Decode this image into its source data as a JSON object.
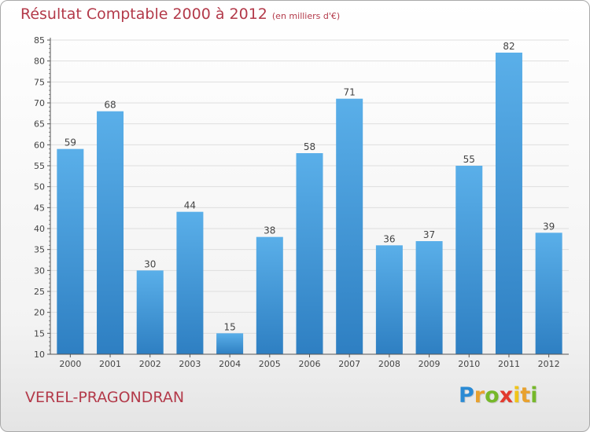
{
  "chart_data": {
    "type": "bar",
    "title": "Résultat Comptable 2000 à 2012",
    "subtitle": "(en milliers d'€)",
    "categories": [
      "2000",
      "2001",
      "2002",
      "2003",
      "2004",
      "2005",
      "2006",
      "2007",
      "2008",
      "2009",
      "2010",
      "2011",
      "2012"
    ],
    "values": [
      59,
      68,
      30,
      44,
      15,
      38,
      58,
      71,
      36,
      37,
      55,
      82,
      39
    ],
    "ylim": [
      10,
      85
    ],
    "yticks": [
      10,
      15,
      20,
      25,
      30,
      35,
      40,
      45,
      50,
      55,
      60,
      65,
      70,
      75,
      80,
      85
    ],
    "xlabel": "",
    "ylabel": "",
    "grid": true
  },
  "place_name": "VEREL-PRAGONDRAN",
  "logo": {
    "text": "Proxiti",
    "letters": [
      "P",
      "r",
      "o",
      "x",
      "i",
      "t",
      "i"
    ],
    "colors": [
      "#2a8ad4",
      "#e8a12e",
      "#76b82a",
      "#e23a2e",
      "#f0c419",
      "#e8a12e",
      "#76b82a"
    ]
  },
  "colors": {
    "title": "#b33a4a",
    "bar_top": "#5aafe9",
    "bar_bottom": "#2e7fc2",
    "grid": "#dedede",
    "axis": "#555555"
  }
}
